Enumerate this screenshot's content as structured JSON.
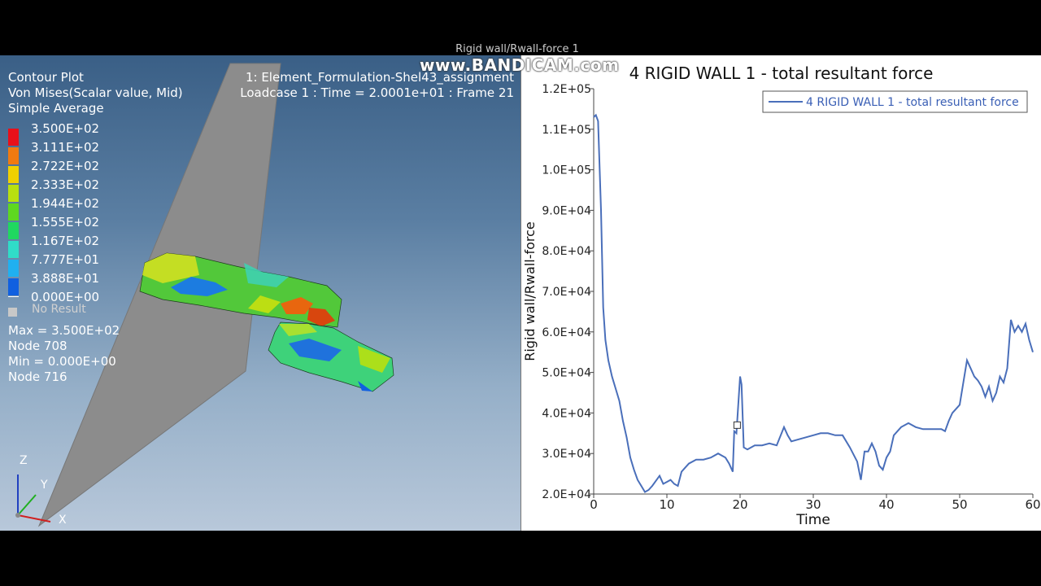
{
  "watermark": {
    "ghost": "Rigid wall/Rwall-force 1",
    "main": "www.BANDICAM.com"
  },
  "viewport": {
    "legend_header": [
      "Contour Plot",
      "Von Mises(Scalar value, Mid)",
      "Simple Average"
    ],
    "model_info": [
      "1: Element_Formulation-Shel43_assignment",
      "Loadcase 1 : Time = 2.0001e+01 : Frame 21"
    ],
    "legend_values": [
      "3.500E+02",
      "3.111E+02",
      "2.722E+02",
      "2.333E+02",
      "1.944E+02",
      "1.555E+02",
      "1.167E+02",
      "7.777E+01",
      "3.888E+01",
      "0.000E+00"
    ],
    "legend_colors": [
      "#e8101a",
      "#f07a10",
      "#f0d000",
      "#b8e010",
      "#5ed820",
      "#20d860",
      "#30dcc8",
      "#20b0f0",
      "#1060e0"
    ],
    "no_result": "No Result",
    "stats": [
      "Max =  3.500E+02",
      "Node 708",
      "Min =  0.000E+00",
      "Node 716"
    ],
    "axes": {
      "z": "Z",
      "y": "Y",
      "x": "X"
    }
  },
  "chart": {
    "title": "4 RIGID WALL 1 - total resultant force",
    "legend": "4 RIGID WALL 1 - total resultant force",
    "line_color": "#4a6fba"
  },
  "chart_data": {
    "type": "line",
    "title": "4 RIGID WALL 1 - total resultant force",
    "xlabel": "Time",
    "ylabel": "Rigid wall/Rwall-force",
    "xlim": [
      0,
      60
    ],
    "ylim": [
      20000,
      120000
    ],
    "xticks": [
      "0",
      "10",
      "20",
      "30",
      "40",
      "50",
      "60"
    ],
    "yticks": [
      "2.0E+04",
      "3.0E+04",
      "4.0E+04",
      "5.0E+04",
      "6.0E+04",
      "7.0E+04",
      "8.0E+04",
      "9.0E+04",
      "1.0E+05",
      "1.1E+05",
      "1.2E+05"
    ],
    "legend_position": "top-right",
    "series": [
      {
        "name": "4 RIGID WALL 1 - total resultant force",
        "x": [
          0,
          0.3,
          0.6,
          1,
          1.3,
          1.6,
          2,
          2.5,
          3,
          3.5,
          4,
          4.5,
          5,
          5.5,
          6,
          6.5,
          7,
          7.5,
          8,
          9,
          9.5,
          10,
          10.5,
          11,
          11.5,
          12,
          12.5,
          13,
          14,
          15,
          16,
          17,
          18,
          18.5,
          19,
          19.2,
          19.5,
          20,
          20.2,
          20.5,
          21,
          22,
          23,
          24,
          25,
          26,
          26.5,
          27,
          28,
          29,
          30,
          31,
          32,
          33,
          34,
          35,
          36,
          36.5,
          37,
          37.5,
          38,
          38.5,
          39,
          39.5,
          40,
          40.5,
          41,
          42,
          43,
          44,
          45,
          46,
          47,
          47.5,
          48,
          48.5,
          49,
          49.5,
          50,
          50.5,
          51,
          51.5,
          52,
          52.5,
          53,
          53.5,
          54,
          54.5,
          55,
          55.5,
          56,
          56.5,
          57,
          57.5,
          58,
          58.5,
          59,
          59.5,
          60
        ],
        "y": [
          113000,
          113500,
          112000,
          90000,
          66000,
          58000,
          53000,
          49000,
          46000,
          43000,
          38000,
          34000,
          29000,
          26000,
          23500,
          22000,
          20500,
          21000,
          22000,
          24500,
          22500,
          23000,
          23500,
          22500,
          22000,
          25500,
          26500,
          27500,
          28500,
          28500,
          29000,
          30000,
          29000,
          27500,
          25500,
          35500,
          35000,
          49000,
          47000,
          31500,
          31000,
          32000,
          32000,
          32500,
          32000,
          36500,
          34500,
          33000,
          33500,
          34000,
          34500,
          35000,
          35000,
          34500,
          34500,
          31500,
          28000,
          23500,
          30500,
          30500,
          32500,
          30500,
          27000,
          26000,
          29000,
          30500,
          34500,
          36500,
          37500,
          36500,
          36000,
          36000,
          36000,
          36000,
          35500,
          38000,
          40000,
          41000,
          42000,
          47500,
          53000,
          51000,
          49000,
          48000,
          46500,
          44000,
          46500,
          43000,
          45000,
          49000,
          47500,
          51000,
          63000,
          60000,
          61500,
          60000,
          62000,
          58000,
          55000
        ]
      }
    ],
    "annotations": [
      {
        "type": "marker",
        "x": 19.6,
        "y": 37000
      }
    ]
  }
}
